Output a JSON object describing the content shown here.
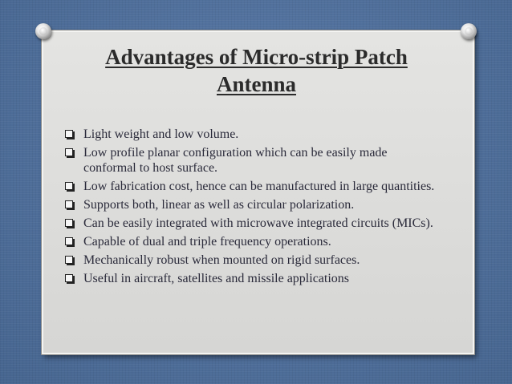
{
  "slide": {
    "title_line1": "Advantages of Micro-strip Patch",
    "title_line2": "Antenna",
    "bullets": [
      "Light weight and low volume.",
      " Low profile planar configuration which can be easily made conformal to host surface.",
      " Low fabrication cost, hence can be manufactured in large quantities.",
      " Supports both, linear as well as circular polarization.",
      " Can be easily integrated with microwave integrated circuits (MICs).",
      "Capable of dual and triple frequency operations.",
      " Mechanically robust when mounted on rigid surfaces.",
      "Useful in aircraft, satellites and missile applications"
    ],
    "bullet_icon": "square-bullet-icon",
    "pin_icon": "pushpin-icon",
    "colors": {
      "background": "#4f6f9c",
      "card": "#dcdcda",
      "text": "#2a2a3a"
    }
  }
}
